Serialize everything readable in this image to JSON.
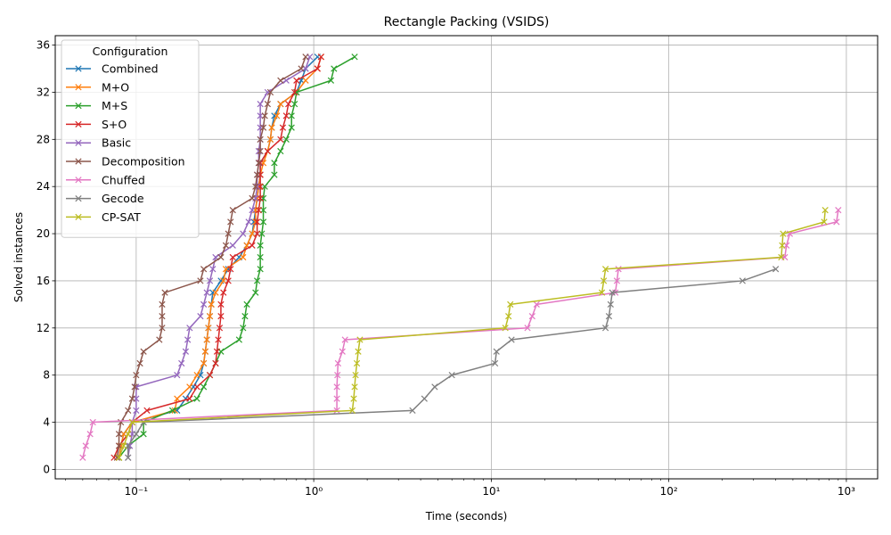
{
  "chart_data": {
    "type": "line",
    "title": "Rectangle Packing (VSIDS)",
    "xlabel": "Time (seconds)",
    "ylabel": "Solved instances",
    "xscale": "log",
    "xlim": [
      0.035,
      1500
    ],
    "ylim": [
      -0.8,
      36.8
    ],
    "xticks": [
      0.1,
      1,
      10,
      100,
      1000
    ],
    "xtick_labels": [
      "10⁻¹",
      "10⁰",
      "10¹",
      "10²",
      "10³"
    ],
    "yticks": [
      0,
      4,
      8,
      12,
      16,
      20,
      24,
      28,
      32,
      36
    ],
    "grid": true,
    "marker": "x",
    "legend": {
      "title": "Configuration",
      "placement": "upper-left"
    },
    "series": [
      {
        "name": "Combined",
        "color": "#1f77b4",
        "points": [
          [
            0.08,
            1
          ],
          [
            0.082,
            2
          ],
          [
            0.085,
            3
          ],
          [
            0.095,
            4
          ],
          [
            0.17,
            5
          ],
          [
            0.19,
            6
          ],
          [
            0.21,
            7
          ],
          [
            0.23,
            8
          ],
          [
            0.24,
            9
          ],
          [
            0.245,
            10
          ],
          [
            0.25,
            11
          ],
          [
            0.255,
            12
          ],
          [
            0.26,
            13
          ],
          [
            0.265,
            14
          ],
          [
            0.27,
            15
          ],
          [
            0.3,
            16
          ],
          [
            0.33,
            17
          ],
          [
            0.38,
            18
          ],
          [
            0.42,
            19
          ],
          [
            0.45,
            20
          ],
          [
            0.46,
            21
          ],
          [
            0.47,
            22
          ],
          [
            0.48,
            23
          ],
          [
            0.49,
            24
          ],
          [
            0.5,
            25
          ],
          [
            0.5,
            26
          ],
          [
            0.55,
            27
          ],
          [
            0.57,
            28
          ],
          [
            0.58,
            29
          ],
          [
            0.6,
            30
          ],
          [
            0.65,
            31
          ],
          [
            0.8,
            32
          ],
          [
            0.85,
            33
          ],
          [
            0.9,
            34
          ],
          [
            1.05,
            35
          ]
        ]
      },
      {
        "name": "M+O",
        "color": "#ff7f0e",
        "points": [
          [
            0.08,
            1
          ],
          [
            0.082,
            2
          ],
          [
            0.085,
            3
          ],
          [
            0.095,
            4
          ],
          [
            0.165,
            5
          ],
          [
            0.17,
            6
          ],
          [
            0.2,
            7
          ],
          [
            0.22,
            8
          ],
          [
            0.24,
            9
          ],
          [
            0.245,
            10
          ],
          [
            0.25,
            11
          ],
          [
            0.255,
            12
          ],
          [
            0.26,
            13
          ],
          [
            0.265,
            14
          ],
          [
            0.28,
            15
          ],
          [
            0.31,
            16
          ],
          [
            0.32,
            17
          ],
          [
            0.4,
            18
          ],
          [
            0.42,
            19
          ],
          [
            0.45,
            20
          ],
          [
            0.47,
            21
          ],
          [
            0.47,
            22
          ],
          [
            0.48,
            23
          ],
          [
            0.49,
            24
          ],
          [
            0.5,
            25
          ],
          [
            0.52,
            26
          ],
          [
            0.55,
            27
          ],
          [
            0.57,
            28
          ],
          [
            0.58,
            29
          ],
          [
            0.62,
            30
          ],
          [
            0.65,
            31
          ],
          [
            0.8,
            32
          ],
          [
            0.9,
            33
          ],
          [
            1.05,
            34
          ],
          [
            1.1,
            35
          ]
        ]
      },
      {
        "name": "M+S",
        "color": "#2ca02c",
        "points": [
          [
            0.08,
            1
          ],
          [
            0.09,
            2
          ],
          [
            0.11,
            3
          ],
          [
            0.11,
            4
          ],
          [
            0.16,
            5
          ],
          [
            0.22,
            6
          ],
          [
            0.24,
            7
          ],
          [
            0.26,
            8
          ],
          [
            0.28,
            9
          ],
          [
            0.3,
            10
          ],
          [
            0.38,
            11
          ],
          [
            0.4,
            12
          ],
          [
            0.41,
            13
          ],
          [
            0.42,
            14
          ],
          [
            0.47,
            15
          ],
          [
            0.48,
            16
          ],
          [
            0.5,
            17
          ],
          [
            0.5,
            18
          ],
          [
            0.5,
            19
          ],
          [
            0.51,
            20
          ],
          [
            0.52,
            21
          ],
          [
            0.52,
            22
          ],
          [
            0.52,
            23
          ],
          [
            0.53,
            24
          ],
          [
            0.6,
            25
          ],
          [
            0.6,
            26
          ],
          [
            0.65,
            27
          ],
          [
            0.7,
            28
          ],
          [
            0.75,
            29
          ],
          [
            0.75,
            30
          ],
          [
            0.78,
            31
          ],
          [
            0.8,
            32
          ],
          [
            1.25,
            33
          ],
          [
            1.3,
            34
          ],
          [
            1.7,
            35
          ]
        ]
      },
      {
        "name": "S+O",
        "color": "#d62728",
        "points": [
          [
            0.075,
            1
          ],
          [
            0.08,
            2
          ],
          [
            0.09,
            3
          ],
          [
            0.095,
            4
          ],
          [
            0.115,
            5
          ],
          [
            0.2,
            6
          ],
          [
            0.22,
            7
          ],
          [
            0.26,
            8
          ],
          [
            0.28,
            9
          ],
          [
            0.285,
            10
          ],
          [
            0.29,
            11
          ],
          [
            0.295,
            12
          ],
          [
            0.3,
            13
          ],
          [
            0.3,
            14
          ],
          [
            0.31,
            15
          ],
          [
            0.33,
            16
          ],
          [
            0.34,
            17
          ],
          [
            0.35,
            18
          ],
          [
            0.45,
            19
          ],
          [
            0.48,
            20
          ],
          [
            0.48,
            21
          ],
          [
            0.49,
            22
          ],
          [
            0.5,
            23
          ],
          [
            0.5,
            24
          ],
          [
            0.5,
            25
          ],
          [
            0.5,
            26
          ],
          [
            0.55,
            27
          ],
          [
            0.65,
            28
          ],
          [
            0.67,
            29
          ],
          [
            0.7,
            30
          ],
          [
            0.72,
            31
          ],
          [
            0.78,
            32
          ],
          [
            0.8,
            33
          ],
          [
            1.05,
            34
          ],
          [
            1.1,
            35
          ]
        ]
      },
      {
        "name": "Basic",
        "color": "#9467bd",
        "points": [
          [
            0.09,
            1
          ],
          [
            0.092,
            2
          ],
          [
            0.095,
            3
          ],
          [
            0.095,
            4
          ],
          [
            0.1,
            5
          ],
          [
            0.1,
            6
          ],
          [
            0.1,
            7
          ],
          [
            0.17,
            8
          ],
          [
            0.18,
            9
          ],
          [
            0.19,
            10
          ],
          [
            0.195,
            11
          ],
          [
            0.2,
            12
          ],
          [
            0.23,
            13
          ],
          [
            0.24,
            14
          ],
          [
            0.25,
            15
          ],
          [
            0.26,
            16
          ],
          [
            0.27,
            17
          ],
          [
            0.28,
            18
          ],
          [
            0.35,
            19
          ],
          [
            0.4,
            20
          ],
          [
            0.43,
            21
          ],
          [
            0.45,
            22
          ],
          [
            0.47,
            23
          ],
          [
            0.48,
            24
          ],
          [
            0.48,
            25
          ],
          [
            0.49,
            26
          ],
          [
            0.49,
            27
          ],
          [
            0.5,
            28
          ],
          [
            0.5,
            29
          ],
          [
            0.5,
            30
          ],
          [
            0.5,
            31
          ],
          [
            0.55,
            32
          ],
          [
            0.7,
            33
          ],
          [
            0.9,
            34
          ],
          [
            0.95,
            35
          ]
        ]
      },
      {
        "name": "Decomposition",
        "color": "#8c564b",
        "points": [
          [
            0.078,
            1
          ],
          [
            0.08,
            2
          ],
          [
            0.08,
            3
          ],
          [
            0.082,
            4
          ],
          [
            0.09,
            5
          ],
          [
            0.095,
            6
          ],
          [
            0.098,
            7
          ],
          [
            0.1,
            8
          ],
          [
            0.105,
            9
          ],
          [
            0.11,
            10
          ],
          [
            0.135,
            11
          ],
          [
            0.14,
            12
          ],
          [
            0.14,
            13
          ],
          [
            0.14,
            14
          ],
          [
            0.145,
            15
          ],
          [
            0.23,
            16
          ],
          [
            0.24,
            17
          ],
          [
            0.3,
            18
          ],
          [
            0.32,
            19
          ],
          [
            0.33,
            20
          ],
          [
            0.34,
            21
          ],
          [
            0.35,
            22
          ],
          [
            0.45,
            23
          ],
          [
            0.47,
            24
          ],
          [
            0.48,
            25
          ],
          [
            0.49,
            26
          ],
          [
            0.5,
            27
          ],
          [
            0.5,
            28
          ],
          [
            0.52,
            29
          ],
          [
            0.53,
            30
          ],
          [
            0.55,
            31
          ],
          [
            0.57,
            32
          ],
          [
            0.65,
            33
          ],
          [
            0.85,
            34
          ],
          [
            0.9,
            35
          ]
        ]
      },
      {
        "name": "Chuffed",
        "color": "#e377c2",
        "points": [
          [
            0.05,
            1
          ],
          [
            0.052,
            2
          ],
          [
            0.055,
            3
          ],
          [
            0.057,
            4
          ],
          [
            1.35,
            5
          ],
          [
            1.35,
            6
          ],
          [
            1.35,
            7
          ],
          [
            1.36,
            8
          ],
          [
            1.37,
            9
          ],
          [
            1.45,
            10
          ],
          [
            1.5,
            11
          ],
          [
            16,
            12
          ],
          [
            17,
            13
          ],
          [
            18,
            14
          ],
          [
            50,
            15
          ],
          [
            51,
            16
          ],
          [
            52,
            17
          ],
          [
            450,
            18
          ],
          [
            460,
            19
          ],
          [
            480,
            20
          ],
          [
            880,
            21
          ],
          [
            900,
            22
          ]
        ]
      },
      {
        "name": "Gecode",
        "color": "#7f7f7f",
        "points": [
          [
            0.09,
            1
          ],
          [
            0.09,
            2
          ],
          [
            0.1,
            3
          ],
          [
            0.11,
            4
          ],
          [
            3.6,
            5
          ],
          [
            4.2,
            6
          ],
          [
            4.8,
            7
          ],
          [
            6,
            8
          ],
          [
            10.5,
            9
          ],
          [
            10.7,
            10
          ],
          [
            13,
            11
          ],
          [
            44,
            12
          ],
          [
            46,
            13
          ],
          [
            47,
            14
          ],
          [
            48,
            15
          ],
          [
            260,
            16
          ],
          [
            400,
            17
          ]
        ]
      },
      {
        "name": "CP-SAT",
        "color": "#bcbd22",
        "points": [
          [
            0.08,
            1
          ],
          [
            0.085,
            2
          ],
          [
            0.09,
            3
          ],
          [
            0.095,
            4
          ],
          [
            1.65,
            5
          ],
          [
            1.68,
            6
          ],
          [
            1.7,
            7
          ],
          [
            1.72,
            8
          ],
          [
            1.75,
            9
          ],
          [
            1.78,
            10
          ],
          [
            1.82,
            11
          ],
          [
            12,
            12
          ],
          [
            12.5,
            13
          ],
          [
            12.8,
            14
          ],
          [
            42,
            15
          ],
          [
            43,
            16
          ],
          [
            44,
            17
          ],
          [
            430,
            18
          ],
          [
            435,
            19
          ],
          [
            440,
            20
          ],
          [
            750,
            21
          ],
          [
            760,
            22
          ]
        ]
      }
    ]
  }
}
